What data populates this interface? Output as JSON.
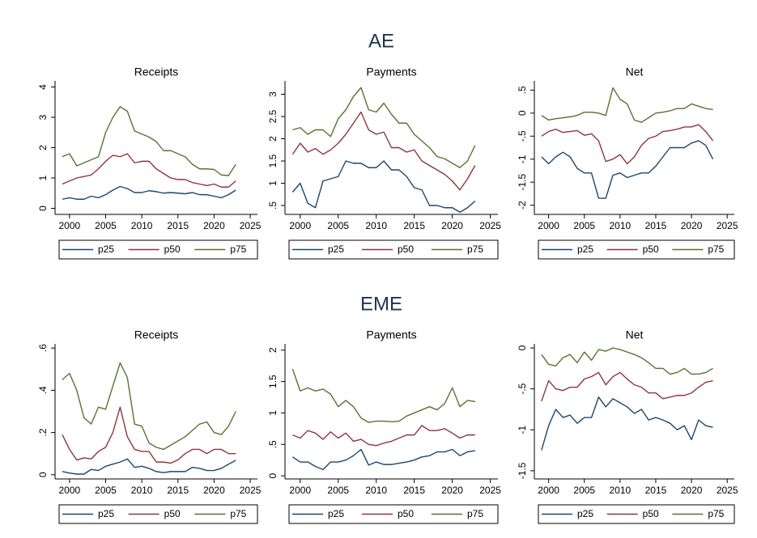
{
  "sections": [
    "AE",
    "EME"
  ],
  "chart_data": [
    {
      "type": "line",
      "title": "Receipts",
      "x": [
        1999,
        2000,
        2001,
        2002,
        2003,
        2004,
        2005,
        2006,
        2007,
        2008,
        2009,
        2010,
        2011,
        2012,
        2013,
        2014,
        2015,
        2016,
        2017,
        2018,
        2019,
        2020,
        2021,
        2022,
        2023
      ],
      "xlim": [
        1998,
        2026
      ],
      "xticks": [
        2000,
        2005,
        2010,
        2015,
        2020,
        2025
      ],
      "ylim": [
        -0.2,
        4.2
      ],
      "yticks": [
        0,
        1,
        2,
        3,
        4
      ],
      "grid": false,
      "series": [
        {
          "name": "p25",
          "color": "#1a476f",
          "values": [
            0.3,
            0.35,
            0.3,
            0.3,
            0.4,
            0.35,
            0.45,
            0.6,
            0.72,
            0.65,
            0.52,
            0.52,
            0.58,
            0.55,
            0.5,
            0.52,
            0.5,
            0.48,
            0.52,
            0.45,
            0.45,
            0.4,
            0.35,
            0.45,
            0.6
          ]
        },
        {
          "name": "p50",
          "color": "#90353b",
          "values": [
            0.8,
            0.9,
            1.0,
            1.05,
            1.1,
            1.3,
            1.55,
            1.75,
            1.7,
            1.8,
            1.5,
            1.55,
            1.55,
            1.3,
            1.15,
            1.0,
            0.95,
            0.95,
            0.85,
            0.8,
            0.75,
            0.8,
            0.7,
            0.7,
            0.9
          ]
        },
        {
          "name": "p75",
          "color": "#55752f",
          "values": [
            1.7,
            1.8,
            1.4,
            1.5,
            1.6,
            1.7,
            2.5,
            3.0,
            3.35,
            3.2,
            2.55,
            2.45,
            2.35,
            2.2,
            1.9,
            1.9,
            1.8,
            1.7,
            1.45,
            1.3,
            1.3,
            1.28,
            1.1,
            1.08,
            1.45
          ]
        }
      ]
    },
    {
      "type": "line",
      "title": "Payments",
      "x": [
        1999,
        2000,
        2001,
        2002,
        2003,
        2004,
        2005,
        2006,
        2007,
        2008,
        2009,
        2010,
        2011,
        2012,
        2013,
        2014,
        2015,
        2016,
        2017,
        2018,
        2019,
        2020,
        2021,
        2022,
        2023
      ],
      "xlim": [
        1998,
        2026
      ],
      "xticks": [
        2000,
        2005,
        2010,
        2015,
        2020,
        2025
      ],
      "ylim": [
        0.3,
        3.3
      ],
      "yticks": [
        {
          "value": 0.5,
          "label": ".5"
        },
        1,
        1.5,
        2,
        2.5,
        3
      ],
      "grid": false,
      "series": [
        {
          "name": "p25",
          "color": "#1a476f",
          "values": [
            0.8,
            1.0,
            0.55,
            0.45,
            1.05,
            1.1,
            1.15,
            1.5,
            1.45,
            1.45,
            1.35,
            1.35,
            1.5,
            1.3,
            1.3,
            1.15,
            0.9,
            0.85,
            0.5,
            0.5,
            0.45,
            0.45,
            0.35,
            0.45,
            0.6
          ]
        },
        {
          "name": "p50",
          "color": "#90353b",
          "values": [
            1.65,
            1.9,
            1.7,
            1.78,
            1.65,
            1.75,
            1.9,
            2.1,
            2.35,
            2.6,
            2.2,
            2.1,
            2.15,
            1.8,
            1.8,
            1.7,
            1.75,
            1.5,
            1.4,
            1.3,
            1.2,
            1.05,
            0.85,
            1.1,
            1.4
          ]
        },
        {
          "name": "p75",
          "color": "#55752f",
          "values": [
            2.2,
            2.25,
            2.1,
            2.2,
            2.2,
            2.05,
            2.45,
            2.65,
            2.95,
            3.15,
            2.65,
            2.6,
            2.8,
            2.55,
            2.35,
            2.35,
            2.1,
            1.95,
            1.8,
            1.6,
            1.55,
            1.45,
            1.35,
            1.5,
            1.85
          ]
        }
      ]
    },
    {
      "type": "line",
      "title": "Net",
      "x": [
        1999,
        2000,
        2001,
        2002,
        2003,
        2004,
        2005,
        2006,
        2007,
        2008,
        2009,
        2010,
        2011,
        2012,
        2013,
        2014,
        2015,
        2016,
        2017,
        2018,
        2019,
        2020,
        2021,
        2022,
        2023
      ],
      "xlim": [
        1998,
        2026
      ],
      "xticks": [
        2000,
        2005,
        2010,
        2015,
        2020,
        2025
      ],
      "ylim": [
        -2.2,
        0.7
      ],
      "yticks": [
        {
          "value": 0.5,
          "label": ".5"
        },
        0,
        {
          "value": -0.5,
          "label": "-.5"
        },
        -1,
        -1.5,
        -2
      ],
      "grid": false,
      "series": [
        {
          "name": "p25",
          "color": "#1a476f",
          "values": [
            -0.95,
            -1.1,
            -0.95,
            -0.85,
            -0.95,
            -1.2,
            -1.3,
            -1.3,
            -1.85,
            -1.85,
            -1.35,
            -1.3,
            -1.4,
            -1.35,
            -1.3,
            -1.3,
            -1.15,
            -0.95,
            -0.75,
            -0.75,
            -0.75,
            -0.65,
            -0.6,
            -0.7,
            -1.0
          ]
        },
        {
          "name": "p50",
          "color": "#90353b",
          "values": [
            -0.5,
            -0.4,
            -0.35,
            -0.42,
            -0.4,
            -0.38,
            -0.48,
            -0.45,
            -0.6,
            -1.05,
            -1.0,
            -0.9,
            -1.1,
            -0.95,
            -0.7,
            -0.55,
            -0.5,
            -0.4,
            -0.38,
            -0.35,
            -0.3,
            -0.3,
            -0.25,
            -0.4,
            -0.6
          ]
        },
        {
          "name": "p75",
          "color": "#55752f",
          "values": [
            -0.05,
            -0.15,
            -0.12,
            -0.1,
            -0.08,
            -0.05,
            0.02,
            0.02,
            0,
            -0.05,
            0.55,
            0.3,
            0.2,
            -0.15,
            -0.2,
            -0.1,
            0,
            0.02,
            0.05,
            0.1,
            0.1,
            0.2,
            0.15,
            0.1,
            0.08
          ]
        }
      ]
    },
    {
      "type": "line",
      "title": "Receipts",
      "x": [
        1999,
        2000,
        2001,
        2002,
        2003,
        2004,
        2005,
        2006,
        2007,
        2008,
        2009,
        2010,
        2011,
        2012,
        2013,
        2014,
        2015,
        2016,
        2017,
        2018,
        2019,
        2020,
        2021,
        2022,
        2023
      ],
      "xlim": [
        1998,
        2026
      ],
      "xticks": [
        2000,
        2005,
        2010,
        2015,
        2020,
        2025
      ],
      "ylim": [
        -0.02,
        0.62
      ],
      "yticks": [
        0,
        {
          "value": 0.2,
          "label": ".2"
        },
        {
          "value": 0.4,
          "label": ".4"
        },
        {
          "value": 0.6,
          "label": ".6"
        }
      ],
      "grid": false,
      "series": [
        {
          "name": "p25",
          "color": "#1a476f",
          "values": [
            0.015,
            0.008,
            0.003,
            0.003,
            0.025,
            0.02,
            0.04,
            0.05,
            0.06,
            0.075,
            0.035,
            0.04,
            0.03,
            0.015,
            0.01,
            0.015,
            0.015,
            0.015,
            0.035,
            0.03,
            0.02,
            0.02,
            0.03,
            0.05,
            0.068
          ]
        },
        {
          "name": "p50",
          "color": "#90353b",
          "values": [
            0.19,
            0.12,
            0.07,
            0.08,
            0.075,
            0.11,
            0.13,
            0.2,
            0.32,
            0.18,
            0.12,
            0.11,
            0.11,
            0.06,
            0.06,
            0.055,
            0.07,
            0.1,
            0.12,
            0.12,
            0.1,
            0.12,
            0.12,
            0.1,
            0.1
          ]
        },
        {
          "name": "p75",
          "color": "#55752f",
          "values": [
            0.45,
            0.48,
            0.4,
            0.27,
            0.24,
            0.32,
            0.31,
            0.42,
            0.53,
            0.46,
            0.24,
            0.23,
            0.15,
            0.13,
            0.12,
            0.14,
            0.16,
            0.18,
            0.21,
            0.24,
            0.25,
            0.2,
            0.19,
            0.23,
            0.3
          ]
        }
      ]
    },
    {
      "type": "line",
      "title": "Payments",
      "x": [
        1999,
        2000,
        2001,
        2002,
        2003,
        2004,
        2005,
        2006,
        2007,
        2008,
        2009,
        2010,
        2011,
        2012,
        2013,
        2014,
        2015,
        2016,
        2017,
        2018,
        2019,
        2020,
        2021,
        2022,
        2023
      ],
      "xlim": [
        1998,
        2026
      ],
      "xticks": [
        2000,
        2005,
        2010,
        2015,
        2020,
        2025
      ],
      "ylim": [
        -0.05,
        2.1
      ],
      "yticks": [
        0,
        {
          "value": 0.5,
          "label": ".5"
        },
        1,
        1.5,
        2
      ],
      "grid": false,
      "series": [
        {
          "name": "p25",
          "color": "#1a476f",
          "values": [
            0.3,
            0.22,
            0.22,
            0.15,
            0.1,
            0.22,
            0.22,
            0.25,
            0.32,
            0.42,
            0.17,
            0.22,
            0.18,
            0.18,
            0.2,
            0.22,
            0.25,
            0.3,
            0.32,
            0.38,
            0.38,
            0.42,
            0.32,
            0.38,
            0.4
          ]
        },
        {
          "name": "p50",
          "color": "#90353b",
          "values": [
            0.65,
            0.6,
            0.72,
            0.68,
            0.58,
            0.7,
            0.6,
            0.68,
            0.55,
            0.58,
            0.5,
            0.48,
            0.52,
            0.55,
            0.6,
            0.65,
            0.65,
            0.8,
            0.72,
            0.72,
            0.75,
            0.68,
            0.6,
            0.65,
            0.65
          ]
        },
        {
          "name": "p75",
          "color": "#55752f",
          "values": [
            1.7,
            1.35,
            1.4,
            1.35,
            1.38,
            1.3,
            1.1,
            1.2,
            1.1,
            0.92,
            0.85,
            0.87,
            0.87,
            0.86,
            0.87,
            0.95,
            1.0,
            1.05,
            1.1,
            1.05,
            1.15,
            1.4,
            1.1,
            1.2,
            1.18
          ]
        }
      ]
    },
    {
      "type": "line",
      "title": "Net",
      "x": [
        1999,
        2000,
        2001,
        2002,
        2003,
        2004,
        2005,
        2006,
        2007,
        2008,
        2009,
        2010,
        2011,
        2012,
        2013,
        2014,
        2015,
        2016,
        2017,
        2018,
        2019,
        2020,
        2021,
        2022,
        2023
      ],
      "xlim": [
        1998,
        2026
      ],
      "xticks": [
        2000,
        2005,
        2010,
        2015,
        2020,
        2025
      ],
      "ylim": [
        -1.6,
        0.05
      ],
      "yticks": [
        0,
        {
          "value": -0.5,
          "label": "-.5"
        },
        -1,
        -1.5
      ],
      "grid": false,
      "series": [
        {
          "name": "p25",
          "color": "#1a476f",
          "values": [
            -1.25,
            -0.95,
            -0.75,
            -0.85,
            -0.82,
            -0.92,
            -0.85,
            -0.85,
            -0.6,
            -0.72,
            -0.62,
            -0.67,
            -0.72,
            -0.8,
            -0.75,
            -0.88,
            -0.85,
            -0.88,
            -0.92,
            -1.0,
            -0.95,
            -1.12,
            -0.88,
            -0.95,
            -0.97
          ]
        },
        {
          "name": "p50",
          "color": "#90353b",
          "values": [
            -0.65,
            -0.4,
            -0.5,
            -0.52,
            -0.48,
            -0.48,
            -0.38,
            -0.35,
            -0.3,
            -0.45,
            -0.35,
            -0.3,
            -0.38,
            -0.45,
            -0.48,
            -0.55,
            -0.55,
            -0.62,
            -0.6,
            -0.58,
            -0.58,
            -0.55,
            -0.48,
            -0.42,
            -0.4
          ]
        },
        {
          "name": "p75",
          "color": "#55752f",
          "values": [
            -0.08,
            -0.2,
            -0.22,
            -0.12,
            -0.08,
            -0.18,
            -0.05,
            -0.15,
            -0.02,
            -0.04,
            0,
            -0.02,
            -0.05,
            -0.08,
            -0.12,
            -0.18,
            -0.25,
            -0.25,
            -0.32,
            -0.3,
            -0.25,
            -0.32,
            -0.32,
            -0.3,
            -0.25
          ]
        }
      ]
    }
  ]
}
